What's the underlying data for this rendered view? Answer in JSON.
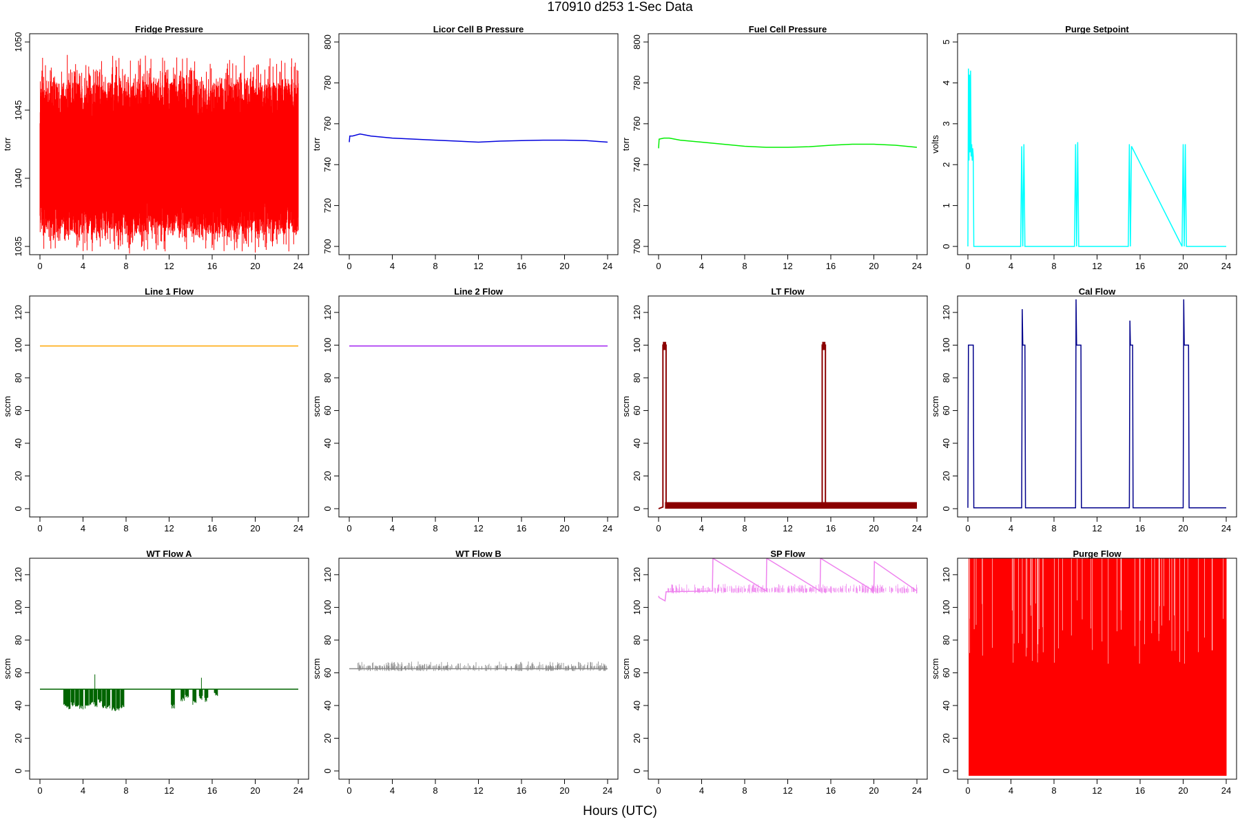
{
  "figure": {
    "title": "170910   d253   1-Sec Data",
    "xlabel": "Hours (UTC)"
  },
  "chart_data": [
    {
      "type": "line",
      "title": "Fridge Pressure",
      "xlabel": "",
      "ylabel": "torr",
      "color": "#ff0000",
      "xlim": [
        0,
        24
      ],
      "ylim": [
        1035,
        1050
      ],
      "xticks": [
        0,
        4,
        8,
        12,
        16,
        20,
        24
      ],
      "yticks": [
        1035,
        1040,
        1045,
        1050
      ],
      "series": [
        {
          "kind": "noise_band",
          "x": [
            0,
            24
          ],
          "center": 1041,
          "low": 1036,
          "high": 1047,
          "spike_min": 1034.2,
          "spike_max": 1049.4
        }
      ]
    },
    {
      "type": "line",
      "title": "Licor Cell B Pressure",
      "xlabel": "",
      "ylabel": "torr",
      "color": "#0000dd",
      "xlim": [
        0,
        24
      ],
      "ylim": [
        700,
        800
      ],
      "xticks": [
        0,
        4,
        8,
        12,
        16,
        20,
        24
      ],
      "yticks": [
        700,
        720,
        740,
        760,
        780,
        800
      ],
      "series": [
        {
          "x": [
            0,
            0.05,
            0.3,
            1,
            2,
            4,
            6,
            8,
            10,
            12,
            14,
            16,
            18,
            20,
            22,
            24
          ],
          "y": [
            751,
            754,
            754,
            755,
            754,
            753,
            752.5,
            752,
            751.5,
            751,
            751.5,
            751.8,
            752,
            752,
            751.8,
            751
          ]
        }
      ]
    },
    {
      "type": "line",
      "title": "Fuel Cell Pressure",
      "xlabel": "",
      "ylabel": "torr",
      "color": "#00ee00",
      "xlim": [
        0,
        24
      ],
      "ylim": [
        700,
        800
      ],
      "xticks": [
        0,
        4,
        8,
        12,
        16,
        20,
        24
      ],
      "yticks": [
        700,
        720,
        740,
        760,
        780,
        800
      ],
      "series": [
        {
          "x": [
            0,
            0.05,
            0.5,
            1,
            2,
            4,
            6,
            8,
            10,
            12,
            14,
            16,
            18,
            20,
            22,
            24
          ],
          "y": [
            748,
            752.5,
            753,
            753,
            752,
            751,
            750,
            749,
            748.5,
            748.5,
            748.8,
            749.5,
            750,
            750,
            749.5,
            748.5
          ]
        }
      ]
    },
    {
      "type": "line",
      "title": "Purge Setpoint",
      "xlabel": "",
      "ylabel": "volts",
      "color": "#00ffff",
      "xlim": [
        0,
        24
      ],
      "ylim": [
        0,
        5
      ],
      "xticks": [
        0,
        4,
        8,
        12,
        16,
        20,
        24
      ],
      "yticks": [
        0,
        1,
        2,
        3,
        4,
        5
      ],
      "series": [
        {
          "x": [
            0,
            0.05,
            0.1,
            0.15,
            0.2,
            0.25,
            0.3,
            0.35,
            0.4,
            0.45,
            0.5,
            0.55,
            4.9,
            5.0,
            5.1,
            5.2,
            5.3,
            9.9,
            10.0,
            10.1,
            10.2,
            10.3,
            14.9,
            15.0,
            15.1,
            15.2,
            19.9,
            20.0,
            20.1,
            20.2,
            20.3,
            24
          ],
          "y": [
            0,
            4.35,
            2.1,
            4.2,
            2.3,
            4.3,
            2.2,
            2.5,
            2.1,
            2.4,
            2.2,
            0,
            0,
            2.45,
            0,
            2.5,
            0,
            0,
            2.5,
            0,
            2.55,
            0,
            0,
            2.5,
            0,
            2.45,
            0,
            2.5,
            0,
            2.5,
            0,
            0
          ]
        }
      ]
    },
    {
      "type": "line",
      "title": "Line 1 Flow",
      "xlabel": "",
      "ylabel": "sccm",
      "color": "#ffa500",
      "xlim": [
        0,
        24
      ],
      "ylim": [
        0,
        125
      ],
      "xticks": [
        0,
        4,
        8,
        12,
        16,
        20,
        24
      ],
      "yticks": [
        0,
        20,
        40,
        60,
        80,
        100,
        120
      ],
      "series": [
        {
          "x": [
            0,
            24
          ],
          "y": [
            99.5,
            99.5
          ]
        }
      ]
    },
    {
      "type": "line",
      "title": "Line 2 Flow",
      "xlabel": "",
      "ylabel": "sccm",
      "color": "#a020f0",
      "xlim": [
        0,
        24
      ],
      "ylim": [
        0,
        125
      ],
      "xticks": [
        0,
        4,
        8,
        12,
        16,
        20,
        24
      ],
      "yticks": [
        0,
        20,
        40,
        60,
        80,
        100,
        120
      ],
      "series": [
        {
          "x": [
            0,
            24
          ],
          "y": [
            99.5,
            99.5
          ]
        }
      ]
    },
    {
      "type": "line",
      "title": "LT Flow",
      "xlabel": "",
      "ylabel": "sccm",
      "color": "#8b0000",
      "xlim": [
        0,
        24
      ],
      "ylim": [
        0,
        125
      ],
      "xticks": [
        0,
        4,
        8,
        12,
        16,
        20,
        24
      ],
      "yticks": [
        0,
        20,
        40,
        60,
        80,
        100,
        120
      ],
      "series": [
        {
          "x": [
            0,
            0.4,
            0.4,
            0.7,
            0.7,
            15.2,
            15.2,
            15.5,
            15.5,
            24
          ],
          "y": [
            0,
            1,
            100,
            100,
            2,
            3,
            100,
            100,
            3,
            3
          ]
        }
      ]
    },
    {
      "type": "line",
      "title": "Cal Flow",
      "xlabel": "",
      "ylabel": "sccm",
      "color": "#00008b",
      "xlim": [
        0,
        24
      ],
      "ylim": [
        0,
        125
      ],
      "xticks": [
        0,
        4,
        8,
        12,
        16,
        20,
        24
      ],
      "yticks": [
        0,
        20,
        40,
        60,
        80,
        100,
        120
      ],
      "series": [
        {
          "x": [
            0,
            0.05,
            0.5,
            0.55,
            5.0,
            5.05,
            5.1,
            5.3,
            5.35,
            10.0,
            10.05,
            10.1,
            10.5,
            10.55,
            15.0,
            15.05,
            15.1,
            15.3,
            15.35,
            20.0,
            20.05,
            20.1,
            20.5,
            20.55,
            24
          ],
          "y": [
            0.5,
            100,
            100,
            0.5,
            0.5,
            122,
            100,
            100,
            0.5,
            0.5,
            128,
            100,
            100,
            0.5,
            0.5,
            115,
            100,
            100,
            0.5,
            0.5,
            128,
            100,
            100,
            0.5,
            0.5
          ]
        }
      ]
    },
    {
      "type": "line",
      "title": "WT Flow A",
      "xlabel": "",
      "ylabel": "sccm",
      "color": "#006400",
      "xlim": [
        0,
        24
      ],
      "ylim": [
        0,
        125
      ],
      "xticks": [
        0,
        4,
        8,
        12,
        16,
        20,
        24
      ],
      "yticks": [
        0,
        20,
        40,
        60,
        80,
        100,
        120
      ],
      "series": [
        {
          "x": [
            0,
            24
          ],
          "y": [
            50,
            50
          ],
          "dips_x": [
            2.2,
            2.5,
            2.9,
            3.3,
            3.7,
            4.2,
            4.6,
            5.0,
            5.4,
            5.8,
            6.2,
            6.7,
            7.1,
            7.5,
            12.2,
            13.1,
            13.5,
            14.2,
            14.8,
            15.3,
            16.2
          ],
          "dips_y": [
            38,
            37,
            39,
            38,
            37,
            38,
            40,
            39,
            41,
            37,
            38,
            36,
            37,
            38,
            38,
            42,
            44,
            40,
            43,
            42,
            45
          ],
          "spikes_x": [
            5.1,
            15.0
          ],
          "spikes_y": [
            59,
            57
          ]
        }
      ]
    },
    {
      "type": "line",
      "title": "WT Flow B",
      "xlabel": "",
      "ylabel": "sccm",
      "color": "#888888",
      "xlim": [
        0,
        24
      ],
      "ylim": [
        0,
        125
      ],
      "xticks": [
        0,
        4,
        8,
        12,
        16,
        20,
        24
      ],
      "yticks": [
        0,
        20,
        40,
        60,
        80,
        100,
        120
      ],
      "series": [
        {
          "x": [
            0,
            24
          ],
          "y": [
            62.5,
            62.5
          ]
        }
      ]
    },
    {
      "type": "line",
      "title": "SP Flow",
      "xlabel": "",
      "ylabel": "sccm",
      "color": "#ee82ee",
      "xlim": [
        0,
        24
      ],
      "ylim": [
        0,
        125
      ],
      "xticks": [
        0,
        4,
        8,
        12,
        16,
        20,
        24
      ],
      "yticks": [
        0,
        20,
        40,
        60,
        80,
        100,
        120
      ],
      "series": [
        {
          "x": [
            0,
            0.05,
            0.6,
            0.7,
            5.0,
            5.05,
            10.0,
            10.05,
            15.0,
            15.05,
            20.0,
            20.05,
            24
          ],
          "y": [
            107,
            106,
            104,
            109.5,
            110,
            130,
            110,
            130,
            110,
            130,
            110,
            128,
            110
          ]
        }
      ]
    },
    {
      "type": "line",
      "title": "Purge Flow",
      "xlabel": "",
      "ylabel": "sccm",
      "color": "#ff0000",
      "xlim": [
        0,
        24
      ],
      "ylim": [
        0,
        125
      ],
      "xticks": [
        0,
        4,
        8,
        12,
        16,
        20,
        24
      ],
      "yticks": [
        0,
        20,
        40,
        60,
        80,
        100,
        120
      ],
      "series": [
        {
          "kind": "noise_band",
          "x": [
            0.1,
            24
          ],
          "low": -3,
          "high": 135
        }
      ]
    }
  ]
}
